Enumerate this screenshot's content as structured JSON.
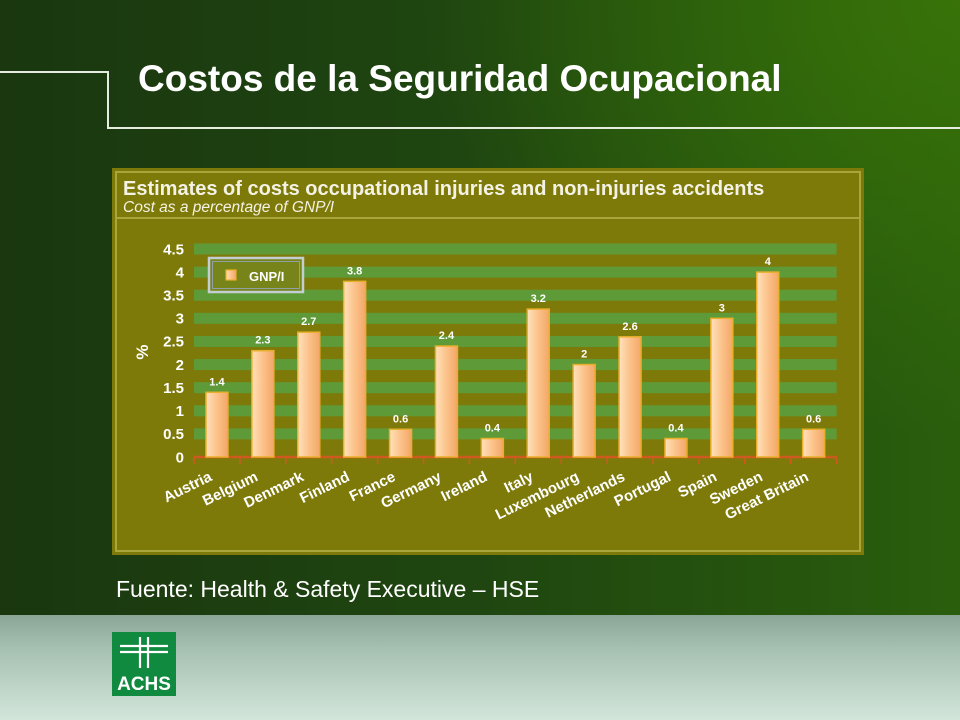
{
  "slide": {
    "title": "Costos de la Seguridad Ocupacional",
    "source": "Fuente: Health & Safety Executive – HSE",
    "logo_text": "ACHS"
  },
  "colors": {
    "background_dark": "#1a3710",
    "background_light": "#2e6a0a",
    "chart_panel": "#7e7a0a",
    "chart_frame": "#a9a63c",
    "grid_band": "#5f9a38",
    "bar_fill": "#f9be84",
    "bar_stroke": "#e9ae2a",
    "axis_line": "#cf5a20",
    "logo_green": "#0f8a3e",
    "footer_band": "#c9e0d2"
  },
  "chart_data": {
    "type": "bar",
    "title": "Estimates of costs occupational injuries and non-injuries accidents",
    "subtitle": "Cost as a percentage of GNP/I",
    "ylabel": "%",
    "ylim": [
      0,
      4.5
    ],
    "yticks": [
      0,
      0.5,
      1,
      1.5,
      2,
      2.5,
      3,
      3.5,
      4,
      4.5
    ],
    "categories": [
      "Austria",
      "Belgium",
      "Denmark",
      "Finland",
      "France",
      "Germany",
      "Ireland",
      "Italy",
      "Luxembourg",
      "Netherlands",
      "Portugal",
      "Spain",
      "Sweden",
      "Great Britain"
    ],
    "series": [
      {
        "name": "GNP/I",
        "values": [
          1.4,
          2.3,
          2.7,
          3.8,
          0.6,
          2.4,
          0.4,
          3.2,
          2,
          2.6,
          0.4,
          3,
          4,
          0.6
        ]
      }
    ],
    "data_labels": true,
    "legend": "top-left",
    "grid": true
  }
}
